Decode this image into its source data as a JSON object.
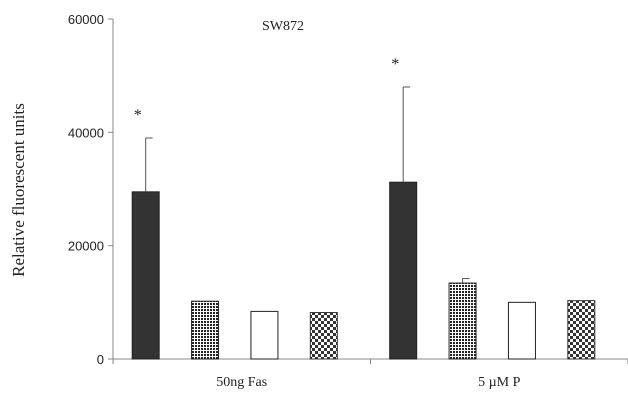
{
  "chart_data": {
    "type": "bar",
    "title": "SW872",
    "xlabel": "",
    "ylabel": "Relative fluorescent units",
    "ylim": [
      0,
      60000
    ],
    "yticks": [
      0,
      20000,
      40000,
      60000
    ],
    "ytick_labels": [
      "0",
      "20000",
      "40000",
      "60000"
    ],
    "categories": [
      "50ng Fas",
      "5 µM P"
    ],
    "bars_per_group": 4,
    "bars": [
      {
        "category": "50ng Fas",
        "pattern": "solid-dark",
        "value": 29500,
        "error": 9500,
        "significance": "*"
      },
      {
        "category": "50ng Fas",
        "pattern": "dense-dots",
        "value": 10200,
        "error": 0,
        "significance": ""
      },
      {
        "category": "50ng Fas",
        "pattern": "white",
        "value": 8400,
        "error": 0,
        "significance": ""
      },
      {
        "category": "50ng Fas",
        "pattern": "checker",
        "value": 8200,
        "error": 0,
        "significance": ""
      },
      {
        "category": "5 µM P",
        "pattern": "solid-dark",
        "value": 31200,
        "error": 16800,
        "significance": "*"
      },
      {
        "category": "5 µM P",
        "pattern": "dense-dots",
        "value": 13400,
        "error": 800,
        "significance": ""
      },
      {
        "category": "5 µM P",
        "pattern": "white",
        "value": 10000,
        "error": 0,
        "significance": ""
      },
      {
        "category": "5 µM P",
        "pattern": "checker",
        "value": 10300,
        "error": 0,
        "significance": ""
      }
    ],
    "colors": {
      "dark": "#333333",
      "axis": "#888888"
    },
    "grid": false
  }
}
